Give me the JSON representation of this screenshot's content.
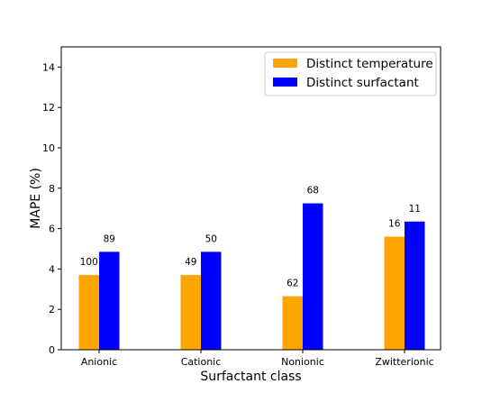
{
  "chart_data": {
    "type": "bar",
    "title": "",
    "xlabel": "Surfactant class",
    "ylabel": "MAPE (%)",
    "ylim": [
      0,
      15
    ],
    "yticks": [
      0,
      2,
      4,
      6,
      8,
      10,
      12,
      14
    ],
    "categories": [
      "Anionic",
      "Cationic",
      "Nonionic",
      "Zwitterionic"
    ],
    "series": [
      {
        "name": "Distinct temperature",
        "color": "#ffa500",
        "values": [
          3.7,
          3.7,
          2.65,
          5.6
        ],
        "labels": [
          "100",
          "49",
          "62",
          "16"
        ]
      },
      {
        "name": "Distinct surfactant",
        "color": "#0000ff",
        "values": [
          4.85,
          4.85,
          7.25,
          6.35
        ],
        "labels": [
          "89",
          "50",
          "68",
          "11"
        ]
      }
    ],
    "legend_position": "top-right",
    "grid": false
  }
}
